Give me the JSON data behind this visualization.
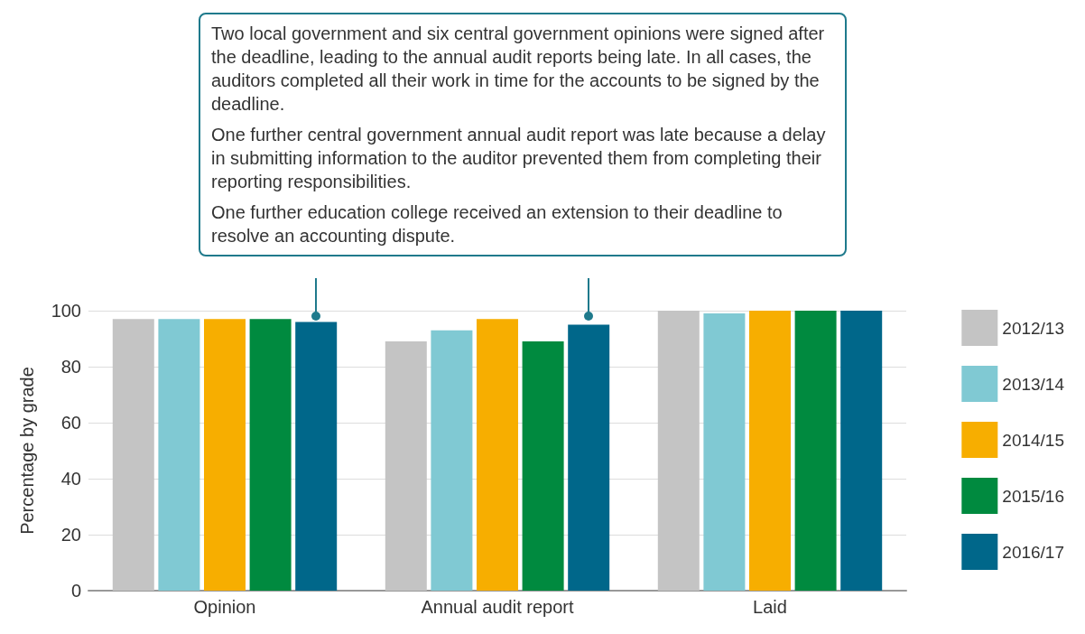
{
  "chart_data": {
    "type": "bar",
    "ylabel": "Percentage by grade",
    "categories": [
      "Opinion",
      "Annual audit report",
      "Laid"
    ],
    "series": [
      {
        "name": "2012/13",
        "color": "#c4c4c4",
        "values": [
          97,
          89,
          100
        ]
      },
      {
        "name": "2013/14",
        "color": "#80c9d3",
        "values": [
          97,
          93,
          99
        ]
      },
      {
        "name": "2014/15",
        "color": "#f7ae00",
        "values": [
          97,
          97,
          100
        ]
      },
      {
        "name": "2015/16",
        "color": "#008a3f",
        "values": [
          97,
          89,
          100
        ]
      },
      {
        "name": "2016/17",
        "color": "#00678a",
        "values": [
          96,
          95,
          100
        ]
      }
    ],
    "ylim": [
      0,
      100
    ],
    "yticks": [
      0,
      20,
      40,
      60,
      80,
      100
    ],
    "grid": "y",
    "legend": "right",
    "annotations": [
      "Two local government and six central government opinions were signed after the deadline, leading to the annual audit reports being late. In all cases, the auditors completed all their work in time for the accounts to be signed by the deadline.",
      "One further central government annual audit report was late because a delay in submitting information to the auditor prevented them from completing their reporting responsibilities.",
      "One further education college received an extension to their deadline to resolve an accounting dispute."
    ]
  }
}
